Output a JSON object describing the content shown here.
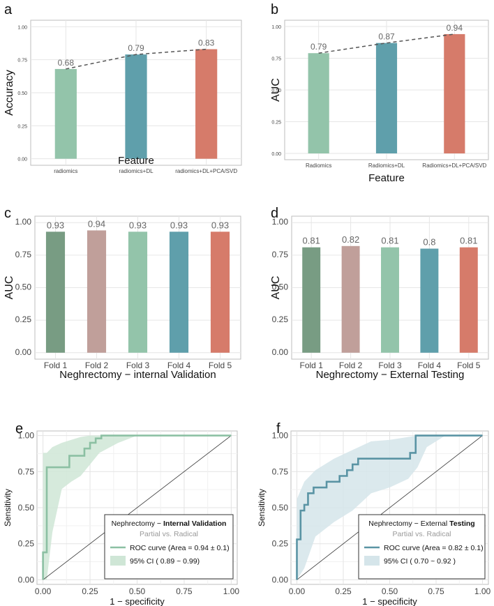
{
  "colors": {
    "green_light": "#93c4aa",
    "teal": "#5f9fab",
    "salmon": "#d67b6a",
    "green_dark": "#789c83",
    "mauve": "#c09f9a",
    "roc_e_line": "#8cc0a3",
    "roc_e_band": "#cfe6d6",
    "roc_f_line": "#5a94a4",
    "roc_f_band": "#d5e5ea",
    "grid": "#e6e6e6",
    "panel_border": "#bdbdbd",
    "dashed_line": "#555555",
    "diagonal": "#333333"
  },
  "chart_data": [
    {
      "panel": "a",
      "type": "bar",
      "xlabel": "Feature",
      "ylabel": "Accuracy",
      "categories": [
        "radiomics",
        "radiomics+DL",
        "radiomics+DL+PCA/SVD"
      ],
      "values": [
        0.68,
        0.79,
        0.83
      ],
      "value_labels": [
        "0.68",
        "0.79",
        "0.83"
      ],
      "bar_colors": [
        "#93c4aa",
        "#5f9fab",
        "#d67b6a"
      ],
      "ylim": [
        0,
        1
      ],
      "yticks": [
        "0.00",
        "0.25",
        "0.50",
        "0.75",
        "1.00"
      ],
      "trend_line": "dashed"
    },
    {
      "panel": "b",
      "type": "bar",
      "xlabel": "Feature",
      "ylabel": "AUC",
      "categories": [
        "Radiomics",
        "Radiomics+DL",
        "Radiomics+DL+PCA/SVD"
      ],
      "values": [
        0.79,
        0.87,
        0.94
      ],
      "value_labels": [
        "0.79",
        "0.87",
        "0.94"
      ],
      "bar_colors": [
        "#93c4aa",
        "#5f9fab",
        "#d67b6a"
      ],
      "ylim": [
        0,
        1
      ],
      "yticks": [
        "0.00",
        "0.25",
        "0.50",
        "0.75",
        "1.00"
      ],
      "trend_line": "dashed"
    },
    {
      "panel": "c",
      "type": "bar",
      "xlabel": "Neghrectomy − internal Validation",
      "ylabel": "AUC",
      "categories": [
        "Fold 1",
        "Fold 2",
        "Fold 3",
        "Fold 4",
        "Fold 5"
      ],
      "values": [
        0.93,
        0.94,
        0.93,
        0.93,
        0.93
      ],
      "value_labels": [
        "0.93",
        "0.94",
        "0.93",
        "0.93",
        "0.93"
      ],
      "bar_colors": [
        "#789c83",
        "#c09f9a",
        "#93c4aa",
        "#5f9fab",
        "#d67b6a"
      ],
      "ylim": [
        0,
        1
      ],
      "yticks": [
        "0.00",
        "0.25",
        "0.50",
        "0.75",
        "1.00"
      ]
    },
    {
      "panel": "d",
      "type": "bar",
      "xlabel": "Neghrectomy − External Testing",
      "ylabel": "AUC",
      "categories": [
        "Fold 1",
        "Fold 2",
        "Fold 3",
        "Fold 4",
        "Fold 5"
      ],
      "values": [
        0.81,
        0.82,
        0.81,
        0.8,
        0.81
      ],
      "value_labels": [
        "0.81",
        "0.82",
        "0.81",
        "0.8",
        "0.81"
      ],
      "bar_colors": [
        "#789c83",
        "#c09f9a",
        "#93c4aa",
        "#5f9fab",
        "#d67b6a"
      ],
      "ylim": [
        0,
        1
      ],
      "yticks": [
        "0.00",
        "0.25",
        "0.50",
        "0.75",
        "1.00"
      ]
    },
    {
      "panel": "e",
      "type": "line",
      "subtype": "roc",
      "xlabel": "1 − specificity",
      "ylabel": "Sensitivity",
      "xlim": [
        0,
        1
      ],
      "ylim": [
        0,
        1
      ],
      "xticks": [
        "0.00",
        "0.25",
        "0.50",
        "0.75",
        "1.00"
      ],
      "yticks": [
        "0.00",
        "0.25",
        "0.50",
        "0.75",
        "1.00"
      ],
      "roc": {
        "x": [
          0,
          0,
          0.02,
          0.02,
          0.05,
          0.05,
          0.14,
          0.14,
          0.22,
          0.22,
          0.25,
          0.25,
          0.28,
          0.28,
          0.31,
          0.31,
          1
        ],
        "y": [
          0,
          0.19,
          0.19,
          0.78,
          0.78,
          0.78,
          0.78,
          0.86,
          0.86,
          0.91,
          0.91,
          0.95,
          0.95,
          0.98,
          0.98,
          1.0,
          1.0
        ]
      },
      "band": {
        "x": [
          0,
          0.02,
          0.05,
          0.1,
          0.15,
          0.2,
          0.25,
          0.3,
          0.4,
          0.5,
          1
        ],
        "lower": [
          0,
          0,
          0.33,
          0.63,
          0.68,
          0.72,
          0.8,
          0.88,
          0.95,
          1.0,
          1.0
        ],
        "upper": [
          0.88,
          0.88,
          0.92,
          0.95,
          0.97,
          0.99,
          1.0,
          1.0,
          1.0,
          1.0,
          1.0
        ]
      },
      "legend": {
        "title_prefix": "Nephrectomy − ",
        "title_emph": "Internal Validation",
        "subtitle": "Partial vs. Radical",
        "roc_label": "ROC curve (Area =  0.94 ± 0.1)",
        "ci_label": "95% CI ( 0.89 ~ 0.99)"
      }
    },
    {
      "panel": "f",
      "type": "line",
      "subtype": "roc",
      "xlabel": "1 − specificity",
      "ylabel": "Sensitivity",
      "xlim": [
        0,
        1
      ],
      "ylim": [
        0,
        1
      ],
      "xticks": [
        "0.00",
        "0.25",
        "0.50",
        "0.75",
        "1.00"
      ],
      "yticks": [
        "0.00",
        "0.25",
        "0.50",
        "0.75",
        "1.00"
      ],
      "roc": {
        "x": [
          0,
          0,
          0.02,
          0.02,
          0.04,
          0.04,
          0.06,
          0.06,
          0.09,
          0.09,
          0.16,
          0.16,
          0.23,
          0.23,
          0.27,
          0.27,
          0.3,
          0.3,
          0.33,
          0.33,
          0.36,
          0.36,
          0.61,
          0.61,
          0.64,
          0.64,
          1
        ],
        "y": [
          0,
          0.28,
          0.28,
          0.48,
          0.48,
          0.52,
          0.52,
          0.6,
          0.6,
          0.64,
          0.64,
          0.68,
          0.68,
          0.72,
          0.72,
          0.76,
          0.76,
          0.8,
          0.8,
          0.84,
          0.84,
          0.84,
          0.84,
          0.88,
          0.88,
          1.0,
          1.0
        ]
      },
      "band": {
        "x": [
          0,
          0.04,
          0.1,
          0.2,
          0.3,
          0.4,
          0.5,
          0.6,
          0.65,
          0.7,
          0.8,
          1
        ],
        "lower": [
          0,
          0.08,
          0.3,
          0.4,
          0.48,
          0.6,
          0.64,
          0.7,
          0.78,
          0.92,
          1.0,
          1.0
        ],
        "upper": [
          0.56,
          0.68,
          0.76,
          0.84,
          0.9,
          0.96,
          0.97,
          0.99,
          1.0,
          1.0,
          1.0,
          1.0
        ]
      },
      "legend": {
        "title_prefix": "Nephrectomy − External ",
        "title_emph": "Testing",
        "subtitle": "Partial vs. Radical",
        "roc_label": "ROC curve (Area =  0.82 ± 0.1)",
        "ci_label": "95% CI ( 0.70 ~ 0.92 )"
      }
    }
  ]
}
